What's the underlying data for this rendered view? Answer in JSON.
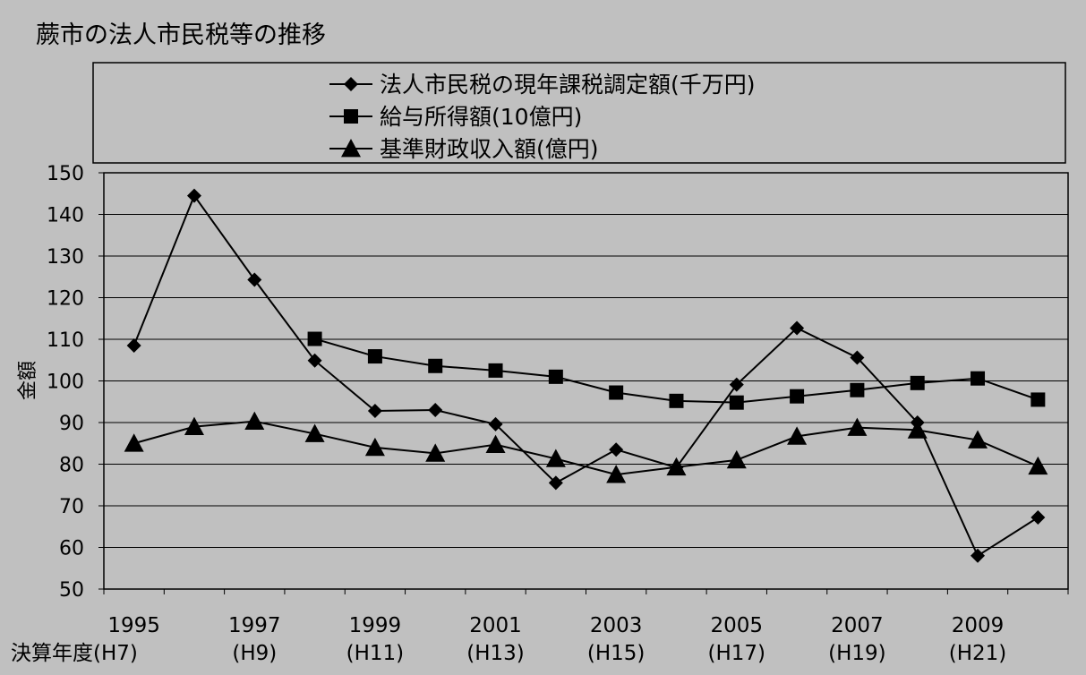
{
  "chart_data": {
    "type": "line",
    "title": "蕨市の法人市民税等の推移",
    "ylabel": "金額",
    "xlabel": "決算年度",
    "ylim": [
      50,
      150
    ],
    "ytick_step": 10,
    "categories": [
      "1995",
      "1996",
      "1997",
      "1998",
      "1999",
      "2000",
      "2001",
      "2002",
      "2003",
      "2004",
      "2005",
      "2006",
      "2007",
      "2008",
      "2009",
      "2010"
    ],
    "x_tick_labels": [
      {
        "year": "1995",
        "era": "決算年度(H7)"
      },
      {
        "year": "1997",
        "era": "(H9)"
      },
      {
        "year": "1999",
        "era": "(H11)"
      },
      {
        "year": "2001",
        "era": "(H13)"
      },
      {
        "year": "2003",
        "era": "(H15)"
      },
      {
        "year": "2005",
        "era": "(H17)"
      },
      {
        "year": "2007",
        "era": "(H19)"
      },
      {
        "year": "2009",
        "era": "(H21)"
      }
    ],
    "series": [
      {
        "name": "法人市民税の現年課税調定額(千万円)",
        "marker": "diamond",
        "values": [
          108.5,
          144.5,
          124.3,
          104.9,
          92.8,
          93.0,
          89.6,
          75.5,
          83.5,
          79.2,
          99.1,
          112.7,
          105.6,
          90.0,
          58.0,
          67.2
        ]
      },
      {
        "name": "給与所得額(10億円)",
        "marker": "square",
        "values": [
          null,
          null,
          null,
          110.1,
          105.9,
          103.6,
          102.5,
          101.0,
          97.2,
          95.2,
          94.8,
          96.3,
          97.8,
          99.5,
          100.6,
          95.5
        ]
      },
      {
        "name": "基準財政収入額(億円)",
        "marker": "triangle",
        "values": [
          85.0,
          89.0,
          90.3,
          87.3,
          84.0,
          82.6,
          84.7,
          81.3,
          77.5,
          79.3,
          81.0,
          86.7,
          88.8,
          88.2,
          85.8,
          79.5
        ]
      }
    ],
    "colors": {
      "background": "#c0c0c0",
      "gridline": "#000000",
      "series_line": "#000000",
      "marker": "#000000"
    },
    "grid": true,
    "legend_position": "top"
  }
}
